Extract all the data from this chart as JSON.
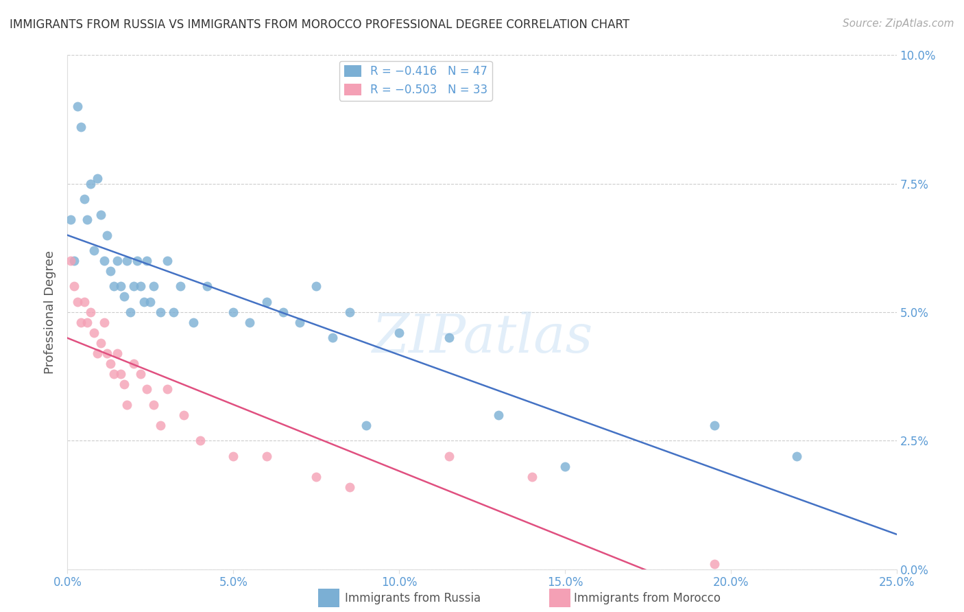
{
  "title": "IMMIGRANTS FROM RUSSIA VS IMMIGRANTS FROM MOROCCO PROFESSIONAL DEGREE CORRELATION CHART",
  "source": "Source: ZipAtlas.com",
  "ylabel": "Professional Degree",
  "xlim": [
    0.0,
    0.25
  ],
  "ylim": [
    0.0,
    0.1
  ],
  "russia_color": "#7bafd4",
  "morocco_color": "#f4a0b5",
  "russia_line_color": "#4472c4",
  "morocco_line_color": "#e05080",
  "legend_R_russia": "R = −0.416",
  "legend_N_russia": "N = 47",
  "legend_R_morocco": "R = −0.503",
  "legend_N_morocco": "N = 33",
  "russia_x": [
    0.001,
    0.002,
    0.003,
    0.004,
    0.005,
    0.006,
    0.007,
    0.008,
    0.009,
    0.01,
    0.011,
    0.012,
    0.013,
    0.014,
    0.015,
    0.016,
    0.017,
    0.018,
    0.019,
    0.02,
    0.021,
    0.022,
    0.023,
    0.024,
    0.025,
    0.026,
    0.028,
    0.03,
    0.032,
    0.034,
    0.038,
    0.042,
    0.05,
    0.055,
    0.06,
    0.065,
    0.07,
    0.075,
    0.08,
    0.085,
    0.09,
    0.1,
    0.115,
    0.13,
    0.15,
    0.195,
    0.22
  ],
  "russia_y": [
    0.068,
    0.06,
    0.09,
    0.086,
    0.072,
    0.068,
    0.075,
    0.062,
    0.076,
    0.069,
    0.06,
    0.065,
    0.058,
    0.055,
    0.06,
    0.055,
    0.053,
    0.06,
    0.05,
    0.055,
    0.06,
    0.055,
    0.052,
    0.06,
    0.052,
    0.055,
    0.05,
    0.06,
    0.05,
    0.055,
    0.048,
    0.055,
    0.05,
    0.048,
    0.052,
    0.05,
    0.048,
    0.055,
    0.045,
    0.05,
    0.028,
    0.046,
    0.045,
    0.03,
    0.02,
    0.028,
    0.022
  ],
  "morocco_x": [
    0.001,
    0.002,
    0.003,
    0.004,
    0.005,
    0.006,
    0.007,
    0.008,
    0.009,
    0.01,
    0.011,
    0.012,
    0.013,
    0.014,
    0.015,
    0.016,
    0.017,
    0.018,
    0.02,
    0.022,
    0.024,
    0.026,
    0.028,
    0.03,
    0.035,
    0.04,
    0.05,
    0.06,
    0.075,
    0.085,
    0.115,
    0.14,
    0.195
  ],
  "morocco_y": [
    0.06,
    0.055,
    0.052,
    0.048,
    0.052,
    0.048,
    0.05,
    0.046,
    0.042,
    0.044,
    0.048,
    0.042,
    0.04,
    0.038,
    0.042,
    0.038,
    0.036,
    0.032,
    0.04,
    0.038,
    0.035,
    0.032,
    0.028,
    0.035,
    0.03,
    0.025,
    0.022,
    0.022,
    0.018,
    0.016,
    0.022,
    0.018,
    0.001
  ],
  "watermark": "ZIPatlas",
  "background_color": "#ffffff",
  "grid_color": "#cccccc",
  "title_color": "#333333",
  "axis_label_color": "#555555",
  "tick_label_color": "#5b9bd5",
  "marker_size": 100
}
